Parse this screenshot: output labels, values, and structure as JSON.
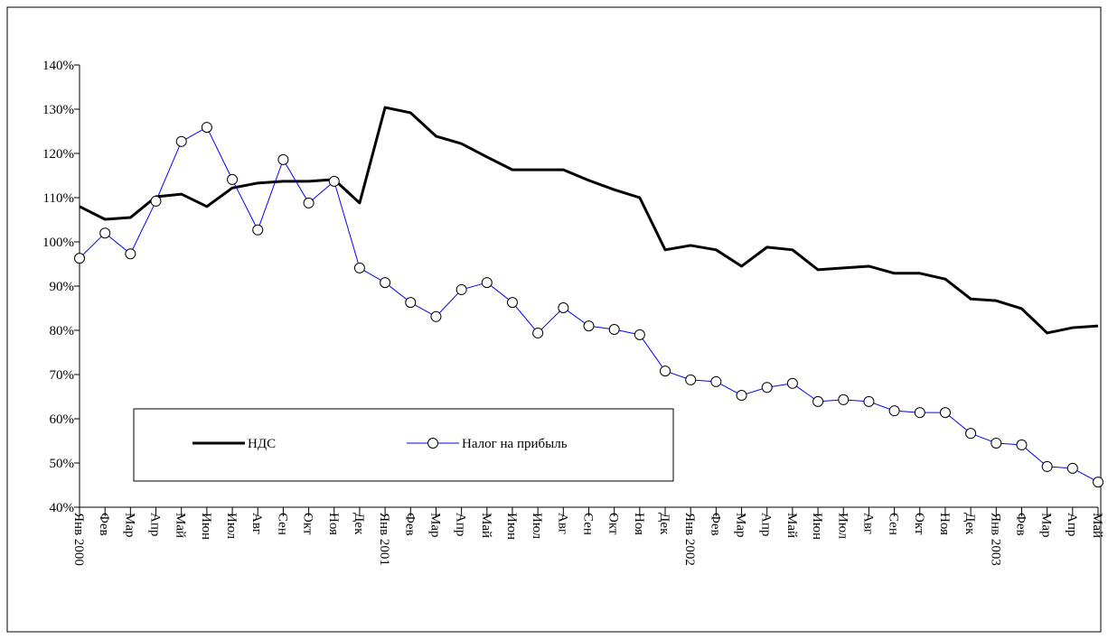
{
  "chart_data": {
    "type": "line",
    "categories": [
      "Янв 2000",
      "Фев",
      "Мар",
      "Апр",
      "Май",
      "Июн",
      "Июл",
      "Авг",
      "Сен",
      "Окт",
      "Ноя",
      "Дек",
      "Янв 2001",
      "Фев",
      "Мар",
      "Апр",
      "Май",
      "Июн",
      "Июл",
      "Авг",
      "Сен",
      "Окт",
      "Ноя",
      "Дек",
      "Янв 2002",
      "Фев",
      "Мар",
      "Апр",
      "Май",
      "Июн",
      "Июл",
      "Авг",
      "Сен",
      "Окт",
      "Ноя",
      "Дек",
      "Янв 2003",
      "Фев",
      "Мар",
      "Апр",
      "Май"
    ],
    "series": [
      {
        "name": "НДС",
        "color": "#000000",
        "marker": false,
        "values": [
          108,
          105.1,
          105.5,
          110.2,
          110.8,
          108,
          112.2,
          113.3,
          113.7,
          113.7,
          114.1,
          108.8,
          130.4,
          129.2,
          123.9,
          122.2,
          119.2,
          116.3,
          116.3,
          116.3,
          113.9,
          111.8,
          110,
          98.2,
          99.2,
          98.2,
          94.5,
          98.8,
          98.2,
          93.7,
          94.1,
          94.5,
          92.9,
          92.9,
          91.6,
          87.1,
          86.7,
          84.9,
          79.4,
          80.6,
          81
        ]
      },
      {
        "name": "Налог на прибыль",
        "color": "#0000ff",
        "marker": true,
        "values": [
          96.3,
          102,
          97.3,
          109.2,
          122.7,
          125.9,
          114.1,
          102.7,
          118.6,
          108.8,
          113.7,
          94.1,
          90.8,
          86.3,
          83.1,
          89.2,
          90.8,
          86.3,
          79.4,
          85.1,
          81,
          80.2,
          79,
          70.8,
          68.8,
          68.4,
          65.3,
          67.1,
          68,
          63.9,
          64.3,
          63.9,
          61.8,
          61.4,
          61.4,
          56.7,
          54.5,
          54.1,
          49.2,
          48.8,
          45.7
        ]
      }
    ],
    "ylim": [
      40,
      140
    ],
    "yticks": [
      {
        "value": 40,
        "label": "40%"
      },
      {
        "value": 50,
        "label": "50%"
      },
      {
        "value": 60,
        "label": "60%"
      },
      {
        "value": 70,
        "label": "70%"
      },
      {
        "value": 80,
        "label": "80%"
      },
      {
        "value": 90,
        "label": "90%"
      },
      {
        "value": 100,
        "label": "100%"
      },
      {
        "value": 110,
        "label": "110%"
      },
      {
        "value": 120,
        "label": "120%"
      },
      {
        "value": 130,
        "label": "130%"
      },
      {
        "value": 140,
        "label": "140%"
      }
    ],
    "grid": false
  }
}
